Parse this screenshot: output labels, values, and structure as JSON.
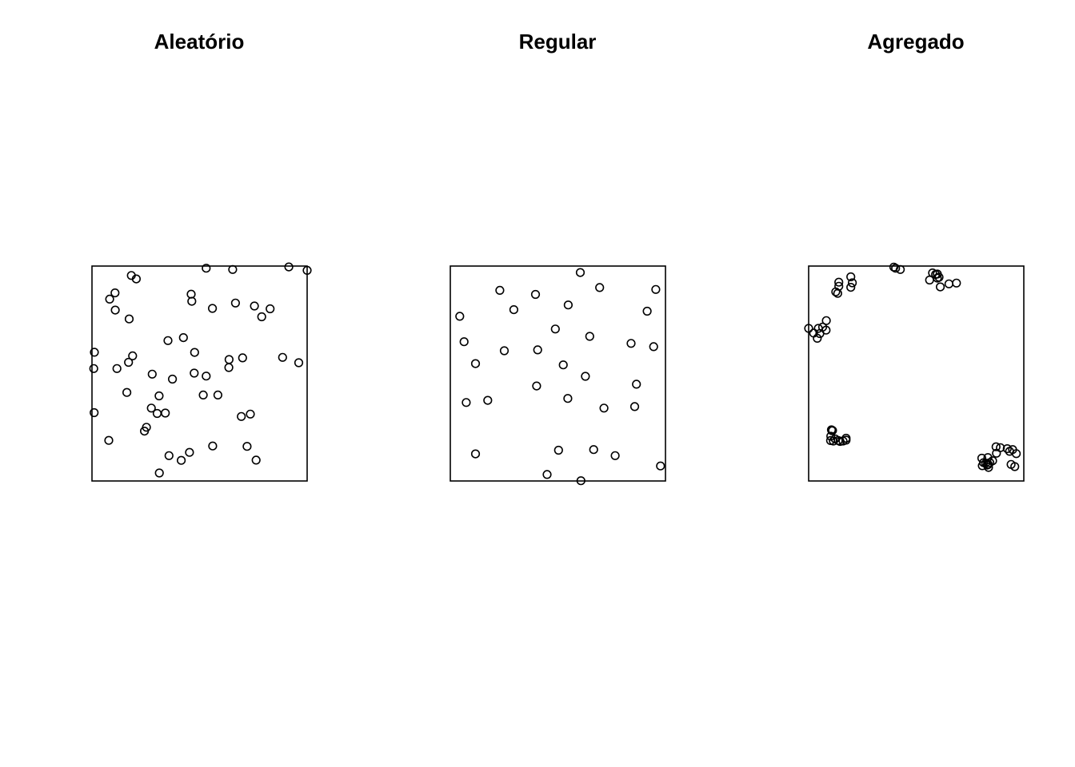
{
  "figure": {
    "background": "#ffffff",
    "point_color": "#000000",
    "marker": "open-circle"
  },
  "chart_data": [
    {
      "type": "scatter",
      "title": "Aleatório",
      "xlim": [
        0,
        1
      ],
      "ylim": [
        0,
        1
      ],
      "axes_visible": false,
      "grid": false,
      "series": [
        {
          "x": [
            0.183,
            0.206,
            0.531,
            0.654,
            0.915,
            1.0,
            0.107,
            0.082,
            0.108,
            0.173,
            0.461,
            0.464,
            0.56,
            0.667,
            0.755,
            0.789,
            0.828,
            0.353,
            0.425,
            0.477,
            0.011,
            0.189,
            0.17,
            0.637,
            0.7,
            0.886,
            0.961,
            0.008,
            0.116,
            0.28,
            0.374,
            0.475,
            0.531,
            0.636,
            0.162,
            0.312,
            0.517,
            0.585,
            0.276,
            0.303,
            0.341,
            0.01,
            0.694,
            0.736,
            0.253,
            0.244,
            0.078,
            0.561,
            0.721,
            0.358,
            0.415,
            0.453,
            0.763,
            0.313
          ],
          "y": [
            0.956,
            0.94,
            0.99,
            0.984,
            0.996,
            0.98,
            0.875,
            0.846,
            0.795,
            0.754,
            0.869,
            0.836,
            0.803,
            0.828,
            0.814,
            0.764,
            0.801,
            0.653,
            0.667,
            0.598,
            0.599,
            0.582,
            0.552,
            0.565,
            0.573,
            0.575,
            0.55,
            0.523,
            0.523,
            0.497,
            0.474,
            0.502,
            0.488,
            0.528,
            0.412,
            0.396,
            0.4,
            0.4,
            0.339,
            0.314,
            0.316,
            0.318,
            0.3,
            0.311,
            0.25,
            0.232,
            0.189,
            0.163,
            0.161,
            0.118,
            0.096,
            0.133,
            0.097,
            0.037
          ]
        }
      ]
    },
    {
      "type": "scatter",
      "title": "Regular",
      "xlim": [
        0,
        1
      ],
      "ylim": [
        0,
        1
      ],
      "axes_visible": false,
      "grid": false,
      "series": [
        {
          "x": [
            0.604,
            0.694,
            0.23,
            0.396,
            0.955,
            0.044,
            0.295,
            0.548,
            0.915,
            0.488,
            0.648,
            0.064,
            0.251,
            0.406,
            0.84,
            0.945,
            0.117,
            0.525,
            0.628,
            0.401,
            0.865,
            0.074,
            0.174,
            0.546,
            0.714,
            0.857,
            0.117,
            0.503,
            0.666,
            0.766,
            0.977,
            0.45,
            0.607
          ],
          "y": [
            0.97,
            0.9,
            0.887,
            0.868,
            0.891,
            0.766,
            0.797,
            0.819,
            0.79,
            0.707,
            0.673,
            0.648,
            0.606,
            0.61,
            0.64,
            0.625,
            0.546,
            0.54,
            0.487,
            0.442,
            0.45,
            0.365,
            0.375,
            0.384,
            0.339,
            0.346,
            0.126,
            0.143,
            0.146,
            0.118,
            0.07,
            0.03,
            0.001
          ]
        }
      ]
    },
    {
      "type": "scatter",
      "title": "Agregado",
      "xlim": [
        0,
        1
      ],
      "ylim": [
        0,
        1
      ],
      "axes_visible": false,
      "grid": false,
      "series": [
        {
          "x": [
            0.14,
            0.14,
            0.196,
            0.203,
            0.196,
            0.126,
            0.135,
            0.396,
            0.404,
            0.426,
            0.576,
            0.598,
            0.606,
            0.612,
            0.652,
            0.562,
            0.59,
            0.598,
            0.687,
            0.082,
            0.065,
            0.045,
            0.023,
            0.0,
            0.04,
            0.052,
            0.081,
            0.106,
            0.108,
            0.103,
            0.111,
            0.102,
            0.115,
            0.16,
            0.174,
            0.174,
            0.138,
            0.146,
            0.123,
            0.833,
            0.842,
            0.805,
            0.823,
            0.83,
            0.835,
            0.807,
            0.813,
            0.836,
            0.855,
            0.873,
            0.891,
            0.871,
            0.923,
            0.948,
            0.934,
            0.965,
            0.941,
            0.958
          ],
          "y": [
            0.925,
            0.906,
            0.95,
            0.922,
            0.901,
            0.88,
            0.873,
            0.995,
            0.99,
            0.984,
            0.968,
            0.944,
            0.948,
            0.903,
            0.917,
            0.935,
            0.961,
            0.963,
            0.921,
            0.746,
            0.716,
            0.71,
            0.688,
            0.71,
            0.664,
            0.686,
            0.702,
            0.238,
            0.234,
            0.208,
            0.235,
            0.188,
            0.186,
            0.186,
            0.199,
            0.19,
            0.188,
            0.184,
            0.196,
            0.109,
            0.085,
            0.106,
            0.083,
            0.074,
            0.077,
            0.071,
            0.085,
            0.063,
            0.094,
            0.129,
            0.155,
            0.159,
            0.15,
            0.146,
            0.138,
            0.127,
            0.077,
            0.067
          ]
        }
      ]
    }
  ]
}
